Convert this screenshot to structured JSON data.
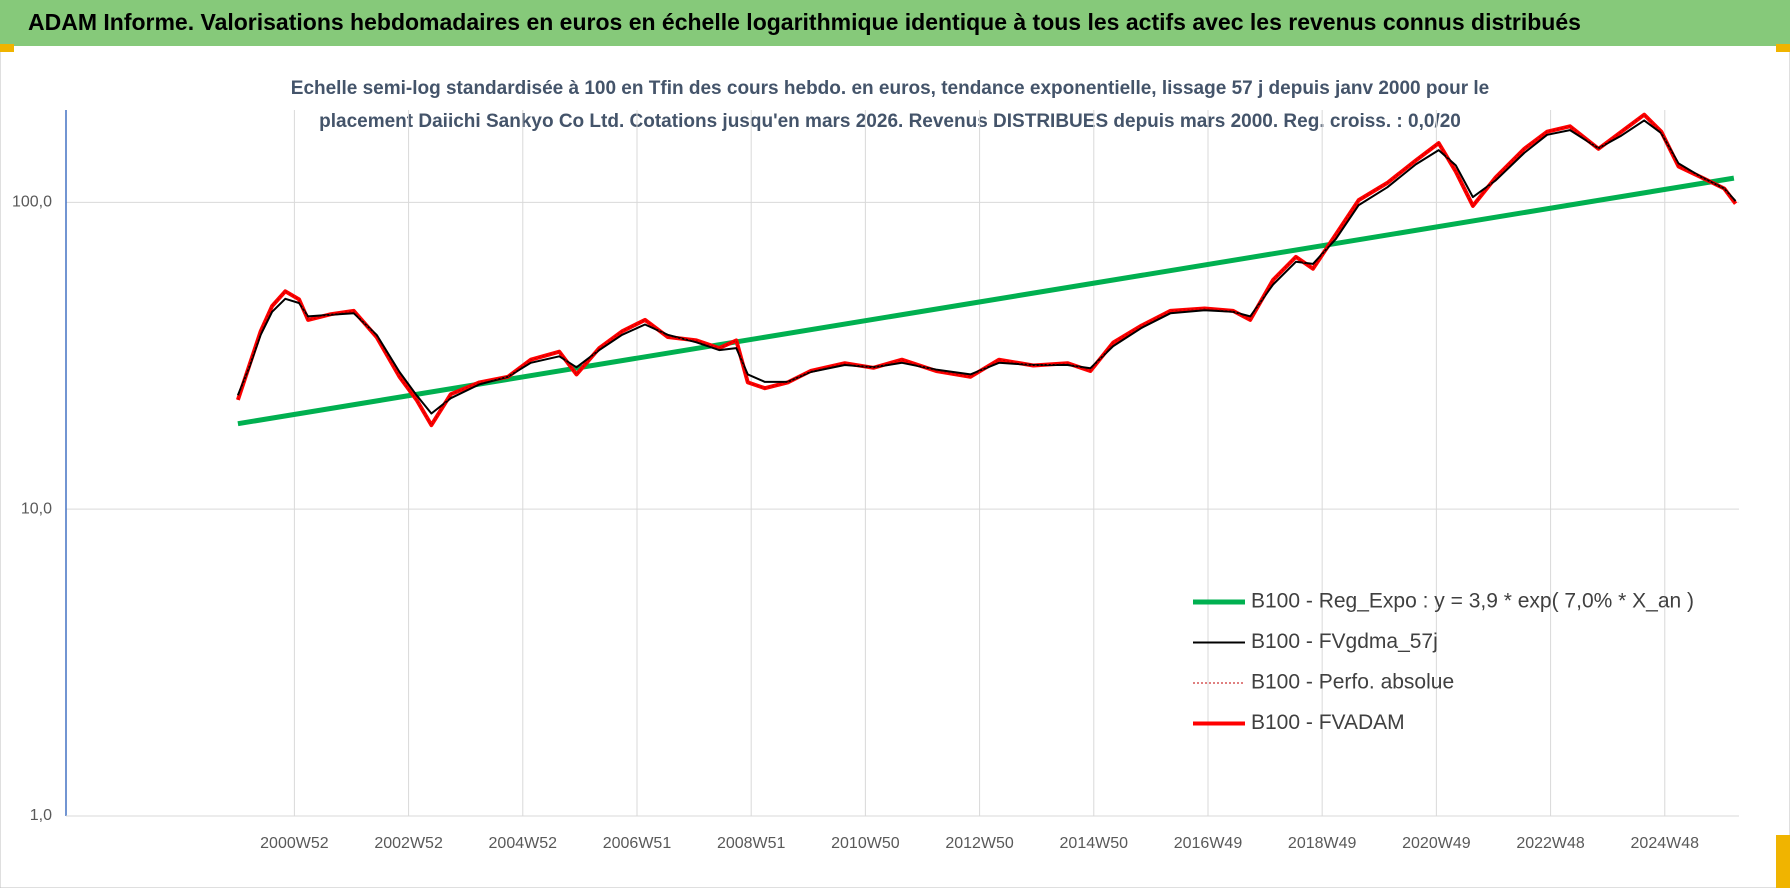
{
  "header": {
    "title": "ADAM Informe. Valorisations hebdomadaires en euros en échelle logarithmique identique à tous les actifs avec les revenus connus distribués"
  },
  "chart_data": {
    "type": "line",
    "title_lines": [
      "Echelle semi-log standardisée à 100 en Tfin des cours hebdo. en euros, tendance exponentielle, lissage 57 j depuis janv 2000 pour le",
      "placement Daiichi Sankyo Co Ltd. Cotations jusqu'en mars 2026. Revenus DISTRIBUES depuis mars 2000. Reg. croiss. : 0,0/20"
    ],
    "log_y": true,
    "grid": true,
    "legend": "lower right",
    "xlim": [
      1996.99,
      2026.29
    ],
    "ylim": [
      1,
      200
    ],
    "yticks": [
      {
        "value": 1,
        "label": "1,0"
      },
      {
        "value": 10,
        "label": "10,0"
      },
      {
        "value": 100,
        "label": "100,0"
      }
    ],
    "xticks": [
      {
        "value": 2000.99,
        "label": "2000W52"
      },
      {
        "value": 2002.99,
        "label": "2002W52"
      },
      {
        "value": 2004.99,
        "label": "2004W52"
      },
      {
        "value": 2006.99,
        "label": "2006W51"
      },
      {
        "value": 2008.99,
        "label": "2008W51"
      },
      {
        "value": 2010.99,
        "label": "2010W50"
      },
      {
        "value": 2012.99,
        "label": "2012W50"
      },
      {
        "value": 2014.99,
        "label": "2014W50"
      },
      {
        "value": 2016.99,
        "label": "2016W49"
      },
      {
        "value": 2018.99,
        "label": "2018W49"
      },
      {
        "value": 2020.99,
        "label": "2020W49"
      },
      {
        "value": 2022.99,
        "label": "2022W48"
      },
      {
        "value": 2024.99,
        "label": "2024W48"
      }
    ],
    "series": [
      {
        "name": "B100 - Reg_Expo : y = 3,9 * exp( 7,0% *  X_an )",
        "color": "#00b050",
        "width": 5,
        "dash": "none",
        "x": [
          2000.0,
          2026.2
        ],
        "values": [
          19,
          120
        ]
      },
      {
        "name": "B100 - FVgdma_57j",
        "color": "#000000",
        "width": 2,
        "dash": "none",
        "x": [
          2000.0,
          2000.2,
          2000.4,
          2000.6,
          2000.83,
          2001.07,
          2001.23,
          2001.63,
          2002.03,
          2002.43,
          2002.83,
          2003.13,
          2003.39,
          2003.73,
          2004.23,
          2004.73,
          2005.13,
          2005.63,
          2005.93,
          2006.33,
          2006.73,
          2007.13,
          2007.53,
          2008.03,
          2008.43,
          2008.73,
          2008.93,
          2009.23,
          2009.63,
          2010.03,
          2010.63,
          2011.13,
          2011.63,
          2012.23,
          2012.83,
          2013.33,
          2013.93,
          2014.53,
          2014.93,
          2015.33,
          2015.83,
          2016.33,
          2016.93,
          2017.43,
          2017.73,
          2018.13,
          2018.53,
          2018.83,
          2019.23,
          2019.63,
          2020.13,
          2020.63,
          2021.03,
          2021.33,
          2021.63,
          2022.03,
          2022.53,
          2022.93,
          2023.33,
          2023.83,
          2024.23,
          2024.63,
          2024.93,
          2025.23,
          2025.63,
          2026.03,
          2026.23
        ],
        "values": [
          23.5,
          29,
          37,
          44,
          48.5,
          47,
          42.5,
          43,
          43.5,
          37,
          28,
          23.5,
          20.5,
          23,
          25.5,
          27,
          30,
          31.5,
          29,
          33,
          37,
          40,
          37,
          35,
          33,
          33.5,
          27.5,
          26,
          26,
          28,
          29.5,
          29,
          30,
          28.5,
          27.5,
          30,
          29.5,
          29.5,
          28.8,
          34,
          39,
          43.5,
          44.5,
          44,
          42.5,
          54,
          64,
          63,
          76,
          98,
          112,
          133,
          148,
          132,
          104,
          118,
          145,
          166,
          172,
          150,
          165,
          185,
          168,
          134,
          121,
          111,
          101
        ]
      },
      {
        "name": "B100 - Perfo. absolue",
        "color": "#c00000",
        "width": 1,
        "dash": "2 2",
        "x": [
          2000.0,
          2000.2,
          2000.4,
          2000.6,
          2000.83,
          2001.07,
          2001.23,
          2001.63,
          2002.03,
          2002.43,
          2002.83,
          2003.13,
          2003.39,
          2003.73,
          2004.23,
          2004.73,
          2005.13,
          2005.63,
          2005.93,
          2006.33,
          2006.73,
          2007.13,
          2007.53,
          2008.03,
          2008.43,
          2008.73,
          2008.93,
          2009.23,
          2009.63,
          2010.03,
          2010.63,
          2011.13,
          2011.63,
          2012.23,
          2012.83,
          2013.33,
          2013.93,
          2014.53,
          2014.93,
          2015.33,
          2015.83,
          2016.33,
          2016.93,
          2017.43,
          2017.73,
          2018.13,
          2018.53,
          2018.83,
          2019.23,
          2019.63,
          2020.13,
          2020.63,
          2021.03,
          2021.33,
          2021.63,
          2022.03,
          2022.53,
          2022.93,
          2023.33,
          2023.83,
          2024.23,
          2024.63,
          2024.93,
          2025.23,
          2025.63,
          2026.03,
          2026.23
        ],
        "values": [
          22.7,
          29.4,
          38,
          45.9,
          51.3,
          48.3,
          41.4,
          43.2,
          44.3,
          36.4,
          27,
          22.7,
          18.8,
          23.7,
          25.9,
          27,
          30.7,
          32.6,
          27.5,
          33.5,
          38,
          41.4,
          36.4,
          35.5,
          33.5,
          35.5,
          25.9,
          24.8,
          25.9,
          28.2,
          29.9,
          28.9,
          30.7,
          28.2,
          27,
          30.7,
          29.4,
          29.9,
          28.2,
          34.9,
          39.7,
          44.3,
          45.1,
          44.3,
          41.4,
          55.9,
          66.4,
          60.8,
          78.7,
          101.7,
          115.7,
          137,
          156,
          126,
          97.4,
          120.7,
          149.5,
          170,
          177,
          149.5,
          170,
          193,
          170,
          131,
          120.7,
          111,
          99
        ]
      },
      {
        "name": "B100 - FVADAM",
        "color": "#ff0000",
        "width": 4,
        "dash": "none",
        "x": [
          2000.0,
          2000.2,
          2000.4,
          2000.6,
          2000.83,
          2001.07,
          2001.23,
          2001.63,
          2002.03,
          2002.43,
          2002.83,
          2003.13,
          2003.39,
          2003.73,
          2004.23,
          2004.73,
          2005.13,
          2005.63,
          2005.93,
          2006.33,
          2006.73,
          2007.13,
          2007.53,
          2008.03,
          2008.43,
          2008.73,
          2008.93,
          2009.23,
          2009.63,
          2010.03,
          2010.63,
          2011.13,
          2011.63,
          2012.23,
          2012.83,
          2013.33,
          2013.93,
          2014.53,
          2014.93,
          2015.33,
          2015.83,
          2016.33,
          2016.93,
          2017.43,
          2017.73,
          2018.13,
          2018.53,
          2018.83,
          2019.23,
          2019.63,
          2020.13,
          2020.63,
          2021.03,
          2021.33,
          2021.63,
          2022.03,
          2022.53,
          2022.93,
          2023.33,
          2023.83,
          2024.23,
          2024.63,
          2024.93,
          2025.23,
          2025.63,
          2026.03,
          2026.23
        ],
        "values": [
          22.7,
          29.4,
          38,
          45.9,
          51.3,
          48.3,
          41.4,
          43.2,
          44.3,
          36.4,
          27,
          22.7,
          18.8,
          23.7,
          25.9,
          27,
          30.7,
          32.6,
          27.5,
          33.5,
          38,
          41.4,
          36.4,
          35.5,
          33.5,
          35.5,
          25.9,
          24.8,
          25.9,
          28.2,
          29.9,
          28.9,
          30.7,
          28.2,
          27,
          30.7,
          29.4,
          29.9,
          28.2,
          34.9,
          39.7,
          44.3,
          45.1,
          44.3,
          41.4,
          55.9,
          66.4,
          60.8,
          78.7,
          101.7,
          115.7,
          137,
          156,
          126,
          97.4,
          120.7,
          149.5,
          170,
          177,
          149.5,
          170,
          193,
          170,
          131,
          120.7,
          111,
          99
        ]
      }
    ]
  }
}
